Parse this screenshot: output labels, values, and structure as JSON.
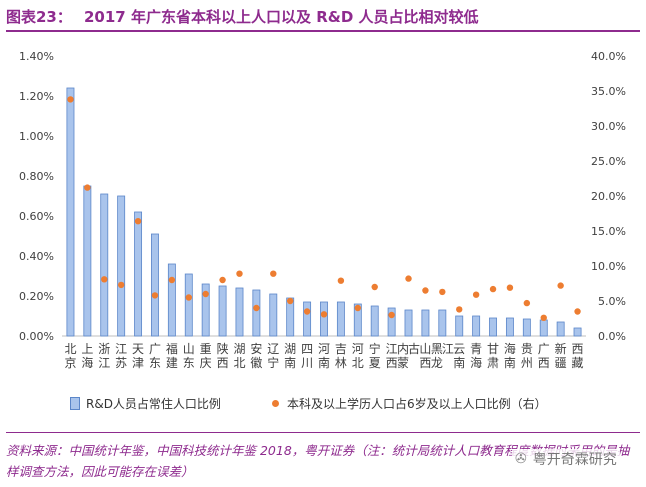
{
  "header": {
    "figure_label": "图表23：",
    "title": "2017 年广东省本科以上人口以及 R&D 人员占比相对较低"
  },
  "chart_data": {
    "type": "bar",
    "categories": [
      "北京",
      "上海",
      "浙江",
      "江苏",
      "天津",
      "广东",
      "福建",
      "山东",
      "重庆",
      "陕西",
      "湖北",
      "安徽",
      "辽宁",
      "湖南",
      "四川",
      "河南",
      "吉林",
      "河北",
      "宁夏",
      "江西",
      "内蒙古",
      "山西",
      "黑龙江",
      "云南",
      "青海",
      "甘肃",
      "海南",
      "贵州",
      "广西",
      "新疆",
      "西藏"
    ],
    "category_labels": [
      "北京",
      "上海",
      "浙江",
      "江苏",
      "天津",
      "广东",
      "福建",
      "山东",
      "重庆",
      "陕西",
      "湖北",
      "安徽",
      "辽宁",
      "湖南",
      "四川",
      "河南",
      "吉林",
      "河北",
      "宁夏",
      "江西",
      "内蒙\n古",
      "山西",
      "黑龙\n江",
      "云南",
      "青海",
      "甘肃",
      "海南",
      "贵州",
      "广西",
      "新疆",
      "西藏"
    ],
    "series": [
      {
        "name": "R&D人员占常住人口比例",
        "type": "bar",
        "axis": "left",
        "values": [
          1.24,
          0.75,
          0.71,
          0.7,
          0.62,
          0.51,
          0.36,
          0.31,
          0.26,
          0.25,
          0.24,
          0.23,
          0.21,
          0.19,
          0.17,
          0.17,
          0.17,
          0.16,
          0.15,
          0.14,
          0.13,
          0.13,
          0.13,
          0.1,
          0.1,
          0.09,
          0.09,
          0.085,
          0.08,
          0.07,
          0.04
        ]
      },
      {
        "name": "本科及以上学历人口占6岁及以上人口比例（右）",
        "type": "scatter",
        "axis": "right",
        "values": [
          33.8,
          21.2,
          8.1,
          7.3,
          16.4,
          5.8,
          8.0,
          5.5,
          6.0,
          8.0,
          8.9,
          4.0,
          8.9,
          5.0,
          3.5,
          3.1,
          7.9,
          4.0,
          7.0,
          3.0,
          8.2,
          6.5,
          6.3,
          3.8,
          5.9,
          6.7,
          6.9,
          4.7,
          2.6,
          7.2,
          3.5
        ]
      }
    ],
    "y_left": {
      "ylim": [
        0,
        1.4
      ],
      "ticks": [
        "0.00%",
        "0.20%",
        "0.40%",
        "0.60%",
        "0.80%",
        "1.00%",
        "1.20%",
        "1.40%"
      ]
    },
    "y_right": {
      "ylim": [
        0,
        40
      ],
      "ticks": [
        "0.0%",
        "5.0%",
        "10.0%",
        "15.0%",
        "20.0%",
        "25.0%",
        "30.0%",
        "35.0%",
        "40.0%"
      ]
    },
    "grid": false,
    "legend_position": "bottom",
    "colors": {
      "bar_fill": "#a9c4ec",
      "bar_stroke": "#5b86c9",
      "dot": "#ed7d31",
      "axis": "#bfbfbf",
      "text": "#404040"
    }
  },
  "legend": {
    "bar_label": "R&D人员占常住人口比例",
    "dot_label": "本科及以上学历人口占6岁及以上人口比例（右）"
  },
  "footer": {
    "source": "资料来源：中国统计年鉴，中国科技统计年鉴 2018，粤开证券（注：统计局统计人口教育程度数据时采用的是抽样调查方法，因此可能存在误差）",
    "watermark": "粤开奇霖研究",
    "watermark_icon": "wechat-icon"
  }
}
